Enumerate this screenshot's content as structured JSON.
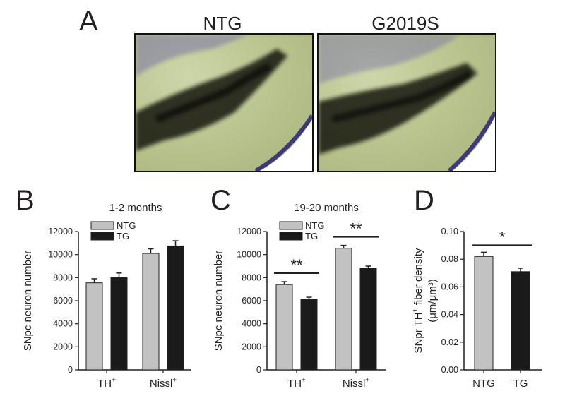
{
  "panel_a": {
    "letter": "A",
    "images": [
      {
        "title": "NTG"
      },
      {
        "title": "G2019S"
      }
    ]
  },
  "colors": {
    "ntg": "#c2c2c2",
    "tg": "#1a1a1a",
    "tissue": "#b9c48f",
    "stain": "#141610",
    "nissl": "#6a62a8"
  },
  "chart_data": [
    {
      "panel": "B",
      "type": "bar",
      "title": "1-2 months",
      "ylabel": "SNpc neuron number",
      "ylim": [
        0,
        12000
      ],
      "yticks": [
        "0",
        "2000",
        "4000",
        "6000",
        "8000",
        "10000",
        "12000"
      ],
      "categories": [
        "TH⁺",
        "Nissl⁺"
      ],
      "series": [
        {
          "name": "NTG",
          "values": [
            7550,
            10100
          ],
          "errors": [
            350,
            400
          ]
        },
        {
          "name": "TG",
          "values": [
            8000,
            10750
          ],
          "errors": [
            400,
            450
          ]
        }
      ],
      "significance": [],
      "legend": "top-left"
    },
    {
      "panel": "C",
      "type": "bar",
      "title": "19-20 months",
      "ylabel": "SNpc neuron number",
      "ylim": [
        0,
        12000
      ],
      "yticks": [
        "0",
        "2000",
        "4000",
        "6000",
        "8000",
        "10000",
        "12000"
      ],
      "categories": [
        "TH⁺",
        "Nissl⁺"
      ],
      "series": [
        {
          "name": "NTG",
          "values": [
            7400,
            10550
          ],
          "errors": [
            250,
            250
          ]
        },
        {
          "name": "TG",
          "values": [
            6100,
            8800
          ],
          "errors": [
            200,
            200
          ]
        }
      ],
      "significance": [
        {
          "category": 0,
          "label": "**"
        },
        {
          "category": 1,
          "label": "**"
        }
      ],
      "legend": "top-left"
    },
    {
      "panel": "D",
      "type": "bar",
      "title": "",
      "ylabel": "SNpr TH⁺ fiber density",
      "yunit": "(μm/μm³)",
      "ylim": [
        0,
        0.1
      ],
      "yticks": [
        "0.00",
        "0.02",
        "0.04",
        "0.06",
        "0.08",
        "0.10"
      ],
      "categories": [
        "NTG",
        "TG"
      ],
      "values": [
        0.082,
        0.071
      ],
      "errors": [
        0.003,
        0.0025
      ],
      "significance": [
        {
          "label": "*"
        }
      ]
    }
  ]
}
